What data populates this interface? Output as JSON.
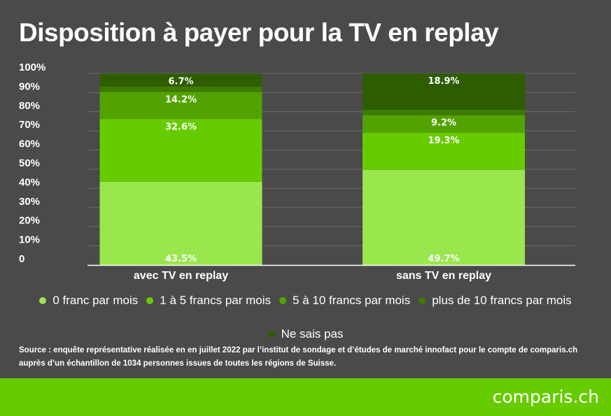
{
  "chart_data": {
    "type": "bar",
    "stacked": true,
    "title": "Disposition à payer pour la TV en replay",
    "categories": [
      "avec TV en replay",
      "sans TV en replay"
    ],
    "ylim": [
      0,
      100
    ],
    "yticks": [
      0,
      10,
      20,
      30,
      40,
      50,
      60,
      70,
      80,
      90,
      100
    ],
    "ytick_labels": [
      "0",
      "10%",
      "20%",
      "30%",
      "40%",
      "50%",
      "60%",
      "70%",
      "80%",
      "90%",
      "100%"
    ],
    "grid": true,
    "legend_position": "bottom",
    "series": [
      {
        "name": "0 franc par mois",
        "color": "#99e64d",
        "values": [
          43.5,
          49.7
        ],
        "labels": [
          "43.5%",
          "49.7%"
        ]
      },
      {
        "name": "1 à 5 francs par mois",
        "color": "#66cc00",
        "values": [
          32.6,
          19.3
        ],
        "labels": [
          "32.6%",
          "19.3%"
        ]
      },
      {
        "name": "5 à 10 francs par mois",
        "color": "#52a300",
        "values": [
          14.2,
          9.2
        ],
        "labels": [
          "14.2%",
          "9.2%"
        ]
      },
      {
        "name": "plus de 10 francs par mois",
        "color": "#3d7a00",
        "values": [
          2.9,
          2.9
        ],
        "labels": [
          "",
          ""
        ]
      },
      {
        "name": "Ne sais pas",
        "color": "#2e5c00",
        "values": [
          6.7,
          18.9
        ],
        "labels": [
          "6.7%",
          "18.9%"
        ]
      }
    ]
  },
  "source": "Source : enquête représentative réalisée en en juillet 2022 par l’institut de sondage et d’études de marché innofact pour le compte de comparis.ch auprès d’un échantillon de 1034 personnes issues de toutes les régions de Suisse.",
  "brand": {
    "logo_text": "comparis.ch",
    "footer_color": "#66cc00"
  }
}
